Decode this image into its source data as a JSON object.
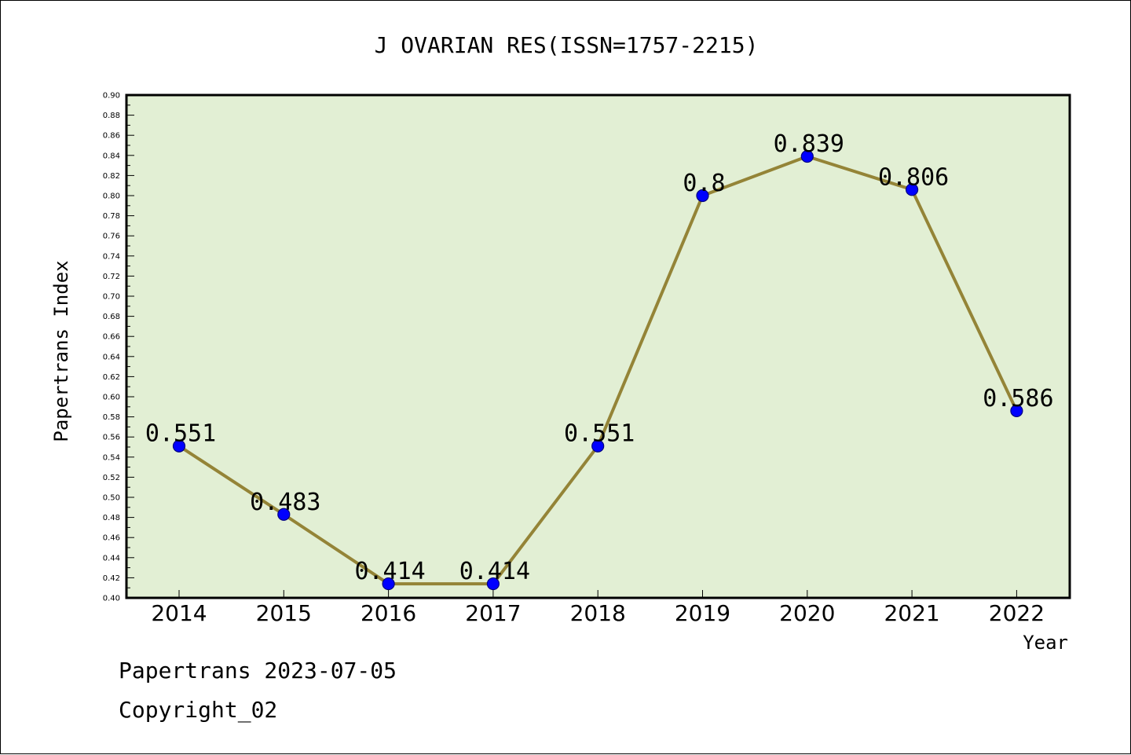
{
  "chart_data": {
    "type": "line",
    "title": "J OVARIAN RES(ISSN=1757-2215)",
    "xlabel": "Year",
    "ylabel": "Papertrans Index",
    "categories": [
      "2014",
      "2015",
      "2016",
      "2017",
      "2018",
      "2019",
      "2020",
      "2021",
      "2022"
    ],
    "values": [
      0.551,
      0.483,
      0.414,
      0.414,
      0.551,
      0.8,
      0.839,
      0.806,
      0.586
    ],
    "data_labels": [
      "0.551",
      "0.483",
      "0.414",
      "0.414",
      "0.551",
      "0.8",
      "0.839",
      "0.806",
      "0.586"
    ],
    "ylim": [
      0.4,
      0.9
    ],
    "ytick_step": 0.02,
    "grid": false,
    "colors": {
      "plot_background": "#e2efd4",
      "line": "#948437",
      "marker": "#0000ff",
      "marker_edge": "#000080"
    }
  },
  "footer": {
    "line1": "Papertrans 2023-07-05",
    "line2": "Copyright_02"
  }
}
